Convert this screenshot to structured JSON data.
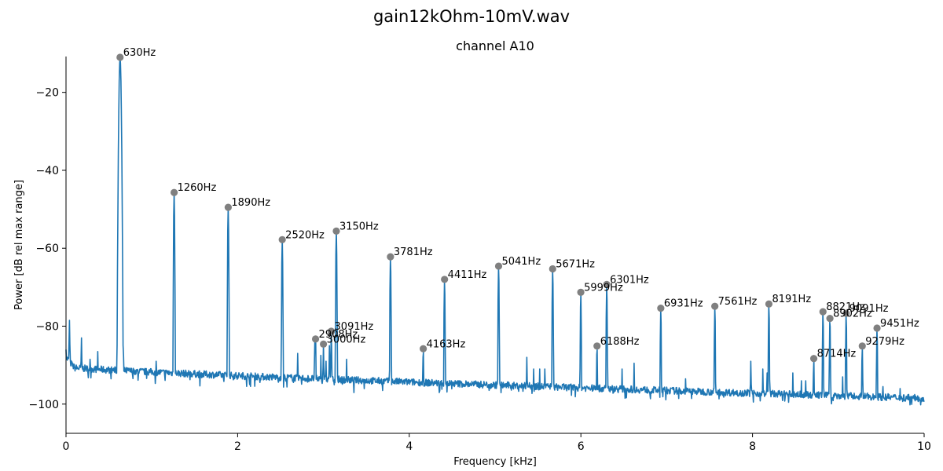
{
  "figure_title": "gain12kOhm-10mV.wav",
  "chart_data": {
    "type": "line",
    "title": "channel A10",
    "xlabel": "Frequency [kHz]",
    "ylabel": "Power [dB rel max range]",
    "xlim": [
      0,
      10
    ],
    "ylim": [
      -107.5,
      -10.8
    ],
    "x_ticks": [
      0,
      2,
      4,
      6,
      8,
      10
    ],
    "y_ticks": [
      -100,
      -80,
      -60,
      -40,
      -20
    ],
    "grid": false,
    "line_color": "#1f77b4",
    "marker_color": "#808080",
    "noise_floor": {
      "start_db": -90.5,
      "end_db": -98.5
    },
    "spectrum_spikes": [
      {
        "f": 0.0,
        "db": -86
      },
      {
        "f": 0.04,
        "db": -78.5
      },
      {
        "f": 0.18,
        "db": -83
      },
      {
        "f": 0.28,
        "db": -88.5
      },
      {
        "f": 0.37,
        "db": -86.5
      },
      {
        "f": 0.67,
        "db": -87.5
      },
      {
        "f": 1.05,
        "db": -89
      },
      {
        "f": 2.7,
        "db": -87
      },
      {
        "f": 2.9,
        "db": -83.2
      },
      {
        "f": 2.97,
        "db": -87.5
      },
      {
        "f": 3.03,
        "db": -89
      },
      {
        "f": 3.07,
        "db": -85
      },
      {
        "f": 3.27,
        "db": -88.5
      },
      {
        "f": 5.37,
        "db": -88
      },
      {
        "f": 5.45,
        "db": -91
      },
      {
        "f": 5.52,
        "db": -91
      },
      {
        "f": 5.58,
        "db": -91
      },
      {
        "f": 6.48,
        "db": -91
      },
      {
        "f": 6.62,
        "db": -89.5
      },
      {
        "f": 7.22,
        "db": -93.5
      },
      {
        "f": 7.98,
        "db": -89
      },
      {
        "f": 8.12,
        "db": -91
      },
      {
        "f": 8.17,
        "db": -92
      },
      {
        "f": 8.47,
        "db": -92
      },
      {
        "f": 8.57,
        "db": -94
      },
      {
        "f": 8.62,
        "db": -94
      },
      {
        "f": 9.05,
        "db": -93
      },
      {
        "f": 9.52,
        "db": -95.5
      },
      {
        "f": 9.72,
        "db": -96
      },
      {
        "f": 9.82,
        "db": -97.5
      }
    ],
    "peaks": [
      {
        "label": "630Hz",
        "f": 0.63,
        "db": -11
      },
      {
        "label": "1260Hz",
        "f": 1.26,
        "db": -45.7
      },
      {
        "label": "1890Hz",
        "f": 1.89,
        "db": -49.5
      },
      {
        "label": "2520Hz",
        "f": 2.52,
        "db": -57.8
      },
      {
        "label": "2908Hz",
        "f": 2.908,
        "db": -83.3
      },
      {
        "label": "3000Hz",
        "f": 3.0,
        "db": -84.6
      },
      {
        "label": "3091Hz",
        "f": 3.091,
        "db": -81.3
      },
      {
        "label": "3150Hz",
        "f": 3.15,
        "db": -55.6
      },
      {
        "label": "3781Hz",
        "f": 3.781,
        "db": -62.2
      },
      {
        "label": "4163Hz",
        "f": 4.163,
        "db": -85.8
      },
      {
        "label": "4411Hz",
        "f": 4.411,
        "db": -68.0
      },
      {
        "label": "5041Hz",
        "f": 5.041,
        "db": -64.6
      },
      {
        "label": "5671Hz",
        "f": 5.671,
        "db": -65.3
      },
      {
        "label": "5999Hz",
        "f": 5.999,
        "db": -71.3
      },
      {
        "label": "6188Hz",
        "f": 6.188,
        "db": -85.1
      },
      {
        "label": "6301Hz",
        "f": 6.301,
        "db": -69.3
      },
      {
        "label": "6931Hz",
        "f": 6.931,
        "db": -75.4
      },
      {
        "label": "7561Hz",
        "f": 7.561,
        "db": -74.9
      },
      {
        "label": "8191Hz",
        "f": 8.191,
        "db": -74.3
      },
      {
        "label": "8714Hz",
        "f": 8.714,
        "db": -88.3
      },
      {
        "label": "8821Hz",
        "f": 8.821,
        "db": -76.3
      },
      {
        "label": "8902Hz",
        "f": 8.902,
        "db": -78.0
      },
      {
        "label": "9091Hz",
        "f": 9.091,
        "db": -76.7
      },
      {
        "label": "9279Hz",
        "f": 9.279,
        "db": -85.1
      },
      {
        "label": "9451Hz",
        "f": 9.451,
        "db": -80.5
      }
    ]
  }
}
